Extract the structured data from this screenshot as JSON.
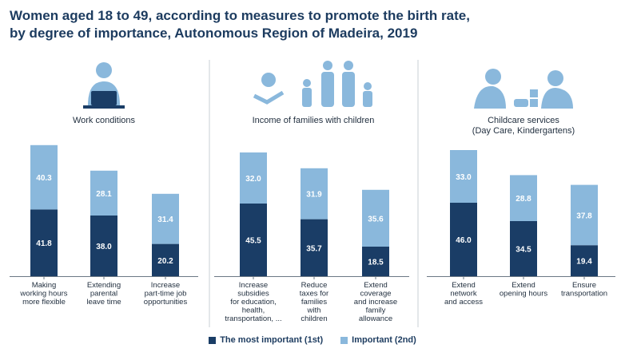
{
  "title": {
    "line1": "Women aged 18 to 49, according to measures to promote the birth rate,",
    "line2": "by degree of importance, Autonomous Region of Madeira, 2019"
  },
  "colors": {
    "dark": "#1a3d66",
    "light": "#8ab8dc",
    "divider": "#c9cfd6",
    "icon": "#8ab8dc"
  },
  "legend": {
    "first": "The most important (1st)",
    "second": "Important (2nd)"
  },
  "chart_data": [
    {
      "type": "bar",
      "stacked": true,
      "title": "Work conditions",
      "icon": "woman-at-laptop-icon",
      "categories": [
        [
          "Making",
          "working hours",
          "more flexible"
        ],
        [
          "Extending",
          "parental",
          "leave time"
        ],
        [
          "Increase",
          "part-time job",
          "opportunities"
        ]
      ],
      "series": [
        {
          "name": "The most important (1st)",
          "values": [
            41.8,
            38.0,
            20.2
          ]
        },
        {
          "name": "Important (2nd)",
          "values": [
            40.3,
            28.1,
            31.4
          ]
        }
      ]
    },
    {
      "type": "bar",
      "stacked": true,
      "title": "Income of families with children",
      "icon": "family-with-money-icon",
      "categories": [
        [
          "Increase",
          "subsidies",
          "for education,",
          "health,",
          "transportation, ..."
        ],
        [
          "Reduce",
          "taxes for",
          "families",
          "with",
          "children"
        ],
        [
          "Extend",
          "coverage",
          "and increase",
          "family",
          "allowance"
        ]
      ],
      "series": [
        {
          "name": "The most important (1st)",
          "values": [
            45.5,
            35.7,
            18.5
          ]
        },
        {
          "name": "Important (2nd)",
          "values": [
            32.0,
            31.9,
            35.6
          ]
        }
      ]
    },
    {
      "type": "bar",
      "stacked": true,
      "title": [
        "Childcare services",
        "(Day Care, Kindergartens)"
      ],
      "icon": "children-playing-icon",
      "categories": [
        [
          "Extend",
          "network",
          "and access"
        ],
        [
          "Extend",
          "opening hours"
        ],
        [
          "Ensure",
          "transportation"
        ]
      ],
      "series": [
        {
          "name": "The most important (1st)",
          "values": [
            46.0,
            34.5,
            19.4
          ]
        },
        {
          "name": "Important (2nd)",
          "values": [
            33.0,
            28.8,
            37.8
          ]
        }
      ]
    }
  ]
}
